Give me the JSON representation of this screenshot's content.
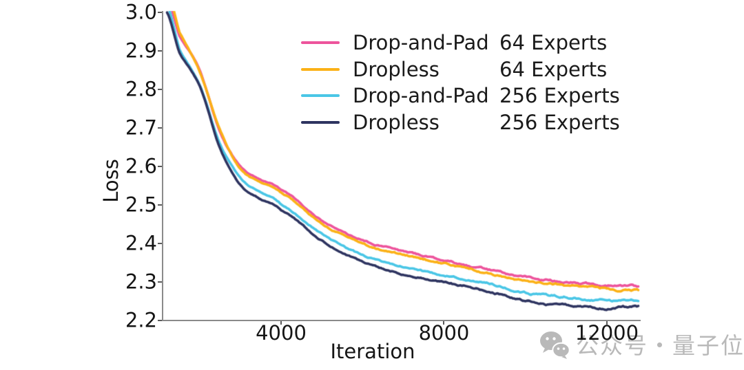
{
  "watermark": {
    "text": "公众号・量子位",
    "color": "#b9b9b9"
  },
  "legend": {
    "entries": [
      {
        "method": "Drop-and-Pad",
        "experts": "64 Experts"
      },
      {
        "method": "Dropless",
        "experts": "64 Experts"
      },
      {
        "method": "Drop-and-Pad",
        "experts": "256 Experts"
      },
      {
        "method": "Dropless",
        "experts": "256 Experts"
      }
    ]
  },
  "chart_data": {
    "type": "line",
    "title": "",
    "xlabel": "Iteration",
    "ylabel": "Loss",
    "xlim": [
      1107,
      12830
    ],
    "ylim": [
      2.2,
      3.0
    ],
    "x_ticks": [
      "4000",
      "8000",
      "12000"
    ],
    "y_ticks": [
      "3.0",
      "2.9",
      "2.8",
      "2.7",
      "2.6",
      "2.5",
      "2.4",
      "2.3",
      "2.2"
    ],
    "grid": false,
    "legend_position": "upper center inside",
    "x": [
      1200,
      1500,
      2000,
      2500,
      3000,
      3500,
      4000,
      5000,
      6000,
      7000,
      8000,
      9000,
      10000,
      11000,
      12000,
      12800
    ],
    "series": [
      {
        "name": "Drop-and-Pad 64 Experts",
        "color": "#ED549C",
        "values": [
          3.04,
          2.94,
          2.85,
          2.69,
          2.6,
          2.565,
          2.54,
          2.46,
          2.408,
          2.38,
          2.356,
          2.334,
          2.312,
          2.3,
          2.291,
          2.288
        ]
      },
      {
        "name": "Dropless 64 Experts",
        "color": "#FBB117",
        "values": [
          3.06,
          2.95,
          2.846,
          2.695,
          2.593,
          2.558,
          2.532,
          2.452,
          2.4,
          2.371,
          2.348,
          2.325,
          2.303,
          2.291,
          2.281,
          2.278
        ]
      },
      {
        "name": "Drop-and-Pad 256 Experts",
        "color": "#4AC6E6",
        "values": [
          3.02,
          2.905,
          2.812,
          2.66,
          2.57,
          2.532,
          2.502,
          2.425,
          2.37,
          2.339,
          2.318,
          2.298,
          2.272,
          2.261,
          2.252,
          2.25
        ]
      },
      {
        "name": "Dropless 256 Experts",
        "color": "#2E3460",
        "values": [
          3.0,
          2.895,
          2.808,
          2.648,
          2.552,
          2.516,
          2.488,
          2.408,
          2.352,
          2.32,
          2.3,
          2.279,
          2.251,
          2.239,
          2.232,
          2.236
        ]
      }
    ]
  }
}
